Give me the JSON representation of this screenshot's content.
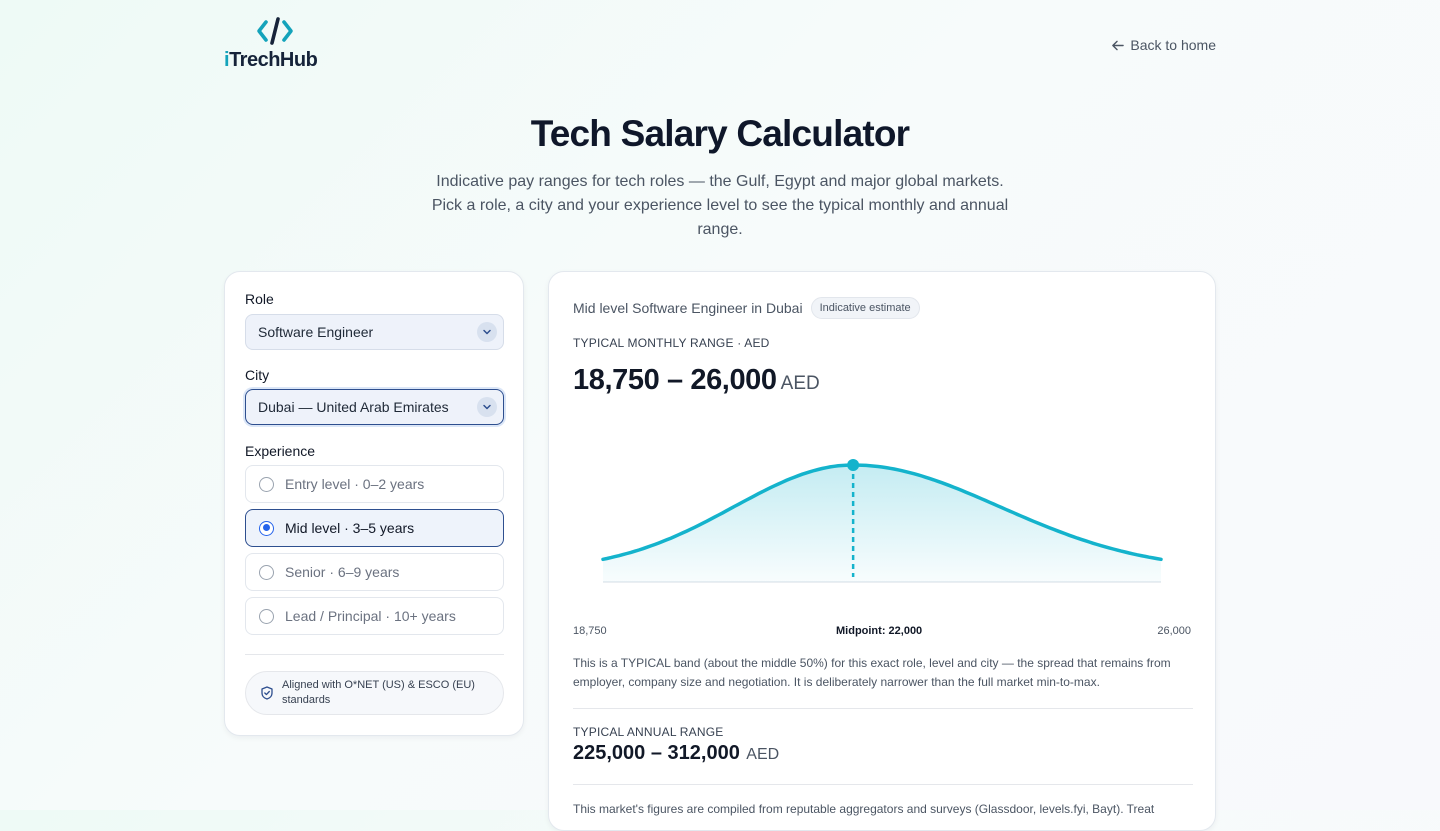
{
  "brand": {
    "prefix": "i",
    "name": "TrechHub",
    "accent": "#14a3bb"
  },
  "nav": {
    "back_label": "Back to home"
  },
  "hero": {
    "title": "Tech Salary Calculator",
    "subtitle": "Indicative pay ranges for tech roles — the Gulf, Egypt and major global markets. Pick a role, a city and your experience level to see the typical monthly and annual range."
  },
  "form": {
    "role_label": "Role",
    "role_value": "Software Engineer",
    "city_label": "City",
    "city_value": "Dubai — United Arab Emirates",
    "experience_label": "Experience",
    "experience_options": [
      {
        "label": "Entry level · 0–2 years",
        "selected": false
      },
      {
        "label": "Mid level · 3–5 years",
        "selected": true
      },
      {
        "label": "Senior · 6–9 years",
        "selected": false
      },
      {
        "label": "Lead / Principal · 10+ years",
        "selected": false
      }
    ],
    "standards_badge": "Aligned with O*NET (US) & ESCO (EU) standards"
  },
  "result": {
    "title": "Mid level Software Engineer in Dubai",
    "badge": "Indicative estimate",
    "monthly_caption": "TYPICAL MONTHLY RANGE · AED",
    "monthly_range": "18,750 – 26,000",
    "currency": "AED",
    "axis_min_label": "18,750",
    "axis_mid_label": "Midpoint: 22,000",
    "axis_max_label": "26,000",
    "note": "This is a TYPICAL band (about the middle 50%) for this exact role, level and city — the spread that remains from employer, company size and negotiation. It is deliberately narrower than the full market min-to-max.",
    "annual_caption": "TYPICAL ANNUAL RANGE",
    "annual_range": "225,000 – 312,000",
    "source_note": "This market's figures are compiled from reputable aggregators and surveys (Glassdoor, levels.fyi, Bayt). Treat"
  },
  "chart_data": {
    "type": "area",
    "x_min": 18750,
    "x_max": 26000,
    "midpoint": 22000,
    "color": "#14b3cc"
  }
}
